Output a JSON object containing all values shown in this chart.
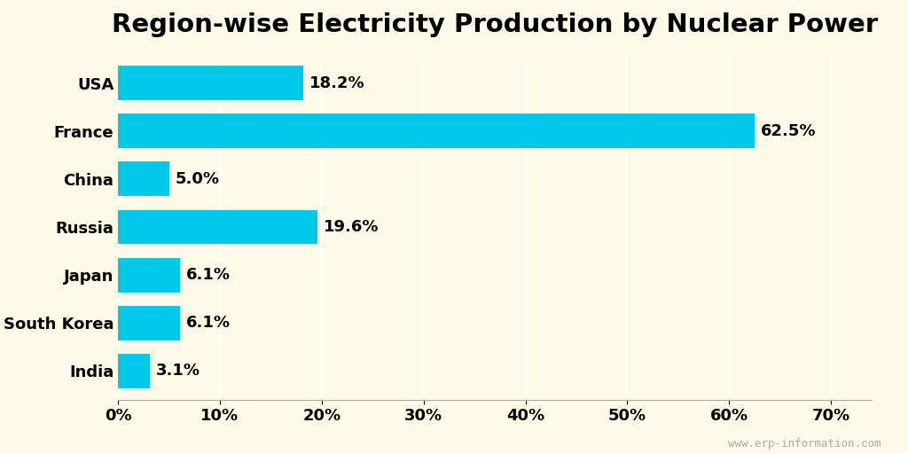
{
  "title": "Region-wise Electricity Production by Nuclear Power",
  "categories": [
    "USA",
    "France",
    "China",
    "Russia",
    "Japan",
    "South Korea",
    "India"
  ],
  "values": [
    18.2,
    62.5,
    5.0,
    19.6,
    6.1,
    6.1,
    3.1
  ],
  "labels": [
    "18.2%",
    "62.5%",
    "5.0%",
    "19.6%",
    "6.1%",
    "6.1%",
    "3.1%"
  ],
  "bar_color": "#00C8E8",
  "background_color": "#FDFAE8",
  "title_fontsize": 21,
  "label_fontsize": 13,
  "tick_fontsize": 13,
  "watermark": "www.erp-information.com",
  "xlim": [
    0,
    74
  ],
  "xticks": [
    0,
    10,
    20,
    30,
    40,
    50,
    60,
    70
  ]
}
